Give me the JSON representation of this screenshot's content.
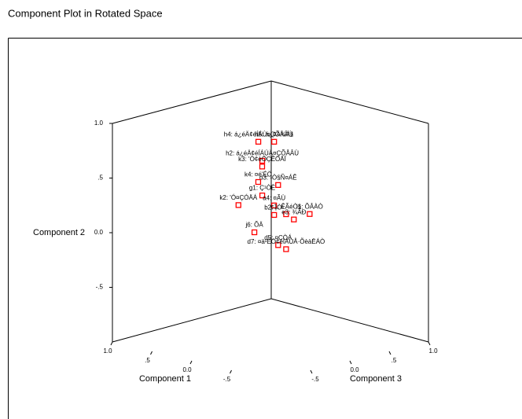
{
  "chart_data": {
    "type": "scatter3d",
    "title": "Component Plot in Rotated Space",
    "xlabel": "Component 1",
    "ylabel": "Component 2",
    "zlabel": "Component 3",
    "xlim": [
      -1,
      1
    ],
    "ylim": [
      -1,
      1
    ],
    "zlim": [
      -1,
      1
    ],
    "xticks": [
      {
        "value": 1,
        "label": "1.0"
      },
      {
        "value": 0.5,
        "label": ".5"
      },
      {
        "value": 0,
        "label": "0.0"
      },
      {
        "value": -0.5,
        "label": "-.5"
      }
    ],
    "yticks": [
      {
        "value": 1,
        "label": "1.0"
      },
      {
        "value": 0.5,
        "label": ".5"
      },
      {
        "value": 0,
        "label": "0.0"
      },
      {
        "value": -0.5,
        "label": "-.5"
      }
    ],
    "zticks": [
      {
        "value": -0.5,
        "label": "-.5"
      },
      {
        "value": 0,
        "label": "0.0"
      },
      {
        "value": 0.5,
        "label": ".5"
      },
      {
        "value": 1,
        "label": "1.0"
      }
    ],
    "color": "#ff0000",
    "series": [
      {
        "labels": [
          "h4: á¿éÄ¢éÍÁÙ¤ÇÕÅÂÙ",
          "h5: á¿¢Ä¾Á§",
          "h2: á¿éÄ¢éÍÁÚÄ¤ÇÕÅÂÙ",
          "k3: 'Ó¢èÖÇÊÖÄÏ",
          "d3: ¹Ò§Ñ¤ÁÊ",
          "k4: ¤é'ÉÖ",
          "g1: Ç¹ÒÈ",
          "k2: 'Ó¤ÇÓÄÁ",
          "a4: ¤ÃÙ",
          "b2: ¡Ò¹",
          "c1: ÊÃéÒ§",
          "e3: ¾ÃÐ",
          "i1: ÕÂÀÒ",
          "j6: ÕÄ",
          "d5: ¤ÇÒÁ",
          "d7: ¤ä¹ÉÖ¢éÍÁÙÅ·ÕèàËÁÒ"
        ],
        "x": [
          0.4,
          0.3,
          0.45,
          0.5,
          0.2,
          0.55,
          0.4,
          0.7,
          0.35,
          0.3,
          0.1,
          0.2,
          0.1,
          0.4,
          0.2,
          0.1
        ],
        "y": [
          0.72,
          0.72,
          0.52,
          0.45,
          0.35,
          0.3,
          0.22,
          0.08,
          0.12,
          0.05,
          0.1,
          0.0,
          0.05,
          -0.1,
          -0.2,
          -0.22
        ],
        "z": [
          0.25,
          0.35,
          0.35,
          0.4,
          0.3,
          0.4,
          0.3,
          0.3,
          0.4,
          0.35,
          0.3,
          0.5,
          0.6,
          0.2,
          0.3,
          0.3
        ]
      }
    ]
  }
}
